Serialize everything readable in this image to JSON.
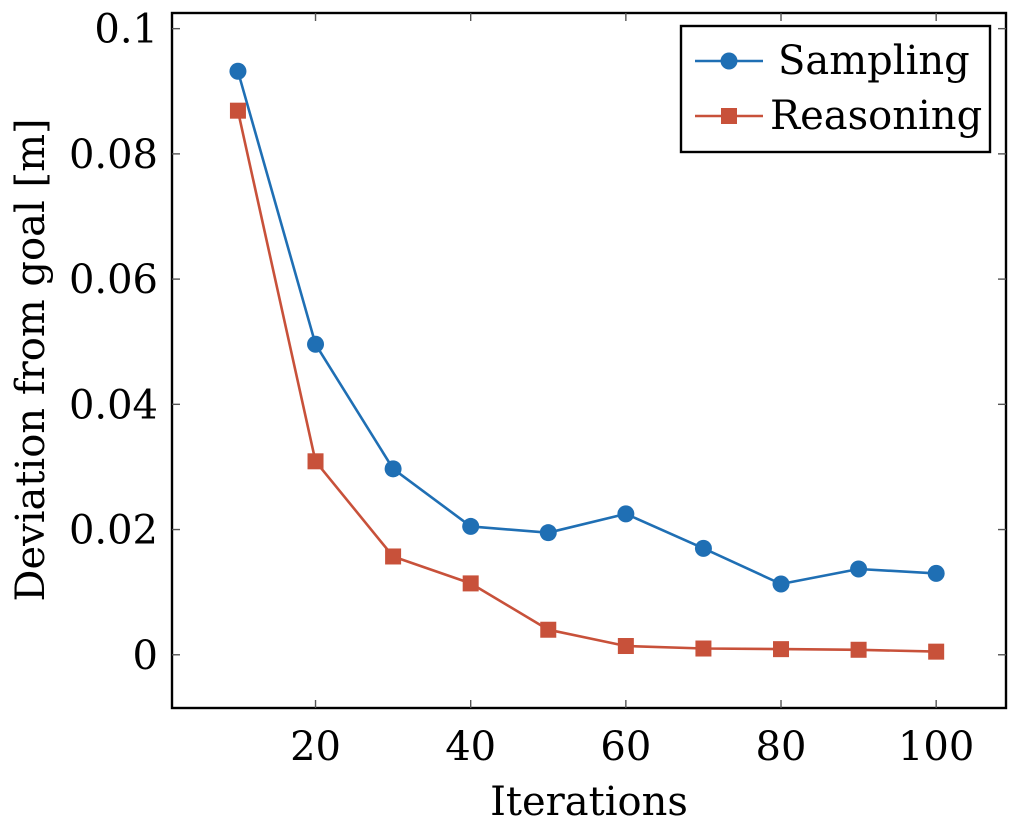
{
  "chart_data": {
    "type": "line",
    "title": "",
    "xlabel": "Iterations",
    "ylabel": "Deviation from goal [m]",
    "xlim": [
      1.5,
      109
    ],
    "ylim": [
      -0.0085,
      0.1025
    ],
    "x_ticks": [
      20,
      40,
      60,
      80,
      100
    ],
    "x_tick_labels": [
      "20",
      "40",
      "60",
      "80",
      "100"
    ],
    "y_ticks": [
      0,
      0.02,
      0.04,
      0.06,
      0.08,
      0.1
    ],
    "y_tick_labels": [
      "0",
      "0.02",
      "0.04",
      "0.06",
      "0.08",
      "0.1"
    ],
    "grid": false,
    "legend_position": "top-right",
    "x": [
      10,
      20,
      30,
      40,
      50,
      60,
      70,
      80,
      90,
      100
    ],
    "series": [
      {
        "name": "Sampling",
        "color": "#1f6fb4",
        "marker": "circle",
        "values": [
          0.0932,
          0.0496,
          0.0297,
          0.0205,
          0.0195,
          0.0225,
          0.017,
          0.0113,
          0.0137,
          0.013
        ]
      },
      {
        "name": "Reasoning",
        "color": "#c8513a",
        "marker": "square",
        "values": [
          0.0869,
          0.0309,
          0.0157,
          0.0114,
          0.004,
          0.0014,
          0.001,
          0.0009,
          0.0008,
          0.0005
        ]
      }
    ]
  }
}
